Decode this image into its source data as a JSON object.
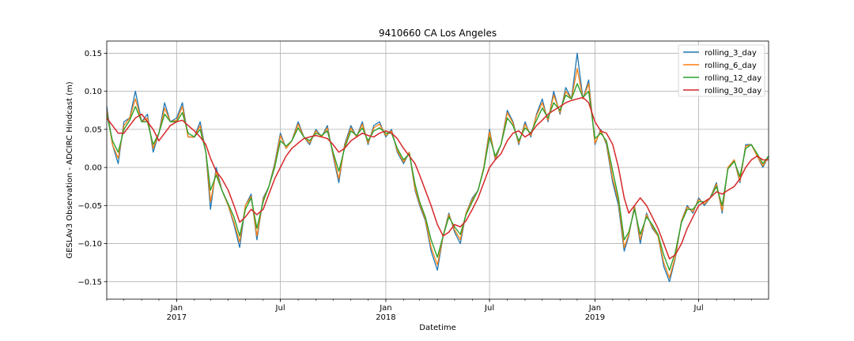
{
  "chart_data": {
    "type": "line",
    "title": "9410660 CA Los Angeles",
    "xlabel": "Datetime",
    "ylabel": "GESLAv3 Observation - ADCIRC Hindcast (m)",
    "xlim": [
      "2016-09-01",
      "2019-10-31"
    ],
    "ylim": [
      -0.173,
      0.166
    ],
    "yticks": [
      -0.15,
      -0.1,
      -0.05,
      0.0,
      0.05,
      0.1,
      0.15
    ],
    "ytick_labels": [
      "−0.15",
      "−0.10",
      "−0.05",
      "0.00",
      "0.05",
      "0.10",
      "0.15"
    ],
    "xticks_major": [
      {
        "date": "2017-01-01",
        "label": "Jan",
        "sublabel": "2017"
      },
      {
        "date": "2017-07-01",
        "label": "Jul",
        "sublabel": ""
      },
      {
        "date": "2018-01-01",
        "label": "Jan",
        "sublabel": "2018"
      },
      {
        "date": "2018-07-01",
        "label": "Jul",
        "sublabel": ""
      },
      {
        "date": "2019-01-01",
        "label": "Jan",
        "sublabel": "2019"
      },
      {
        "date": "2019-07-01",
        "label": "Jul",
        "sublabel": ""
      }
    ],
    "grid": true,
    "legend_position": "top-right",
    "series": [
      {
        "name": "rolling_3_day",
        "color": "#1f77b4"
      },
      {
        "name": "rolling_6_day",
        "color": "#ff7f0e"
      },
      {
        "name": "rolling_12_day",
        "color": "#2ca02c"
      },
      {
        "name": "rolling_30_day",
        "color": "#d62728"
      }
    ],
    "x": [
      "2016-09-01",
      "2016-09-11",
      "2016-09-21",
      "2016-10-01",
      "2016-10-11",
      "2016-10-21",
      "2016-11-01",
      "2016-11-11",
      "2016-11-21",
      "2016-12-01",
      "2016-12-11",
      "2016-12-21",
      "2017-01-01",
      "2017-01-11",
      "2017-01-21",
      "2017-02-01",
      "2017-02-11",
      "2017-02-21",
      "2017-03-01",
      "2017-03-11",
      "2017-03-21",
      "2017-04-01",
      "2017-04-11",
      "2017-04-21",
      "2017-05-01",
      "2017-05-11",
      "2017-05-21",
      "2017-06-01",
      "2017-06-11",
      "2017-06-21",
      "2017-07-01",
      "2017-07-11",
      "2017-07-21",
      "2017-08-01",
      "2017-08-11",
      "2017-08-21",
      "2017-09-01",
      "2017-09-11",
      "2017-09-21",
      "2017-10-01",
      "2017-10-11",
      "2017-10-21",
      "2017-11-01",
      "2017-11-11",
      "2017-11-21",
      "2017-12-01",
      "2017-12-11",
      "2017-12-21",
      "2018-01-01",
      "2018-01-11",
      "2018-01-21",
      "2018-02-01",
      "2018-02-11",
      "2018-02-21",
      "2018-03-01",
      "2018-03-11",
      "2018-03-21",
      "2018-04-01",
      "2018-04-11",
      "2018-04-21",
      "2018-05-01",
      "2018-05-11",
      "2018-05-21",
      "2018-06-01",
      "2018-06-11",
      "2018-06-21",
      "2018-07-01",
      "2018-07-11",
      "2018-07-21",
      "2018-08-01",
      "2018-08-11",
      "2018-08-21",
      "2018-09-01",
      "2018-09-11",
      "2018-09-21",
      "2018-10-01",
      "2018-10-11",
      "2018-10-21",
      "2018-11-01",
      "2018-11-11",
      "2018-11-21",
      "2018-12-01",
      "2018-12-11",
      "2018-12-21",
      "2019-01-01",
      "2019-01-11",
      "2019-01-21",
      "2019-02-01",
      "2019-02-11",
      "2019-02-21",
      "2019-03-01",
      "2019-03-11",
      "2019-03-21",
      "2019-04-01",
      "2019-04-11",
      "2019-04-21",
      "2019-05-01",
      "2019-05-11",
      "2019-05-21",
      "2019-06-01",
      "2019-06-11",
      "2019-06-21",
      "2019-07-01",
      "2019-07-11",
      "2019-07-21",
      "2019-08-01",
      "2019-08-11",
      "2019-08-21",
      "2019-09-01",
      "2019-09-11",
      "2019-09-21",
      "2019-10-01",
      "2019-10-11",
      "2019-10-21",
      "2019-10-31"
    ],
    "values": {
      "rolling_3_day": [
        0.08,
        0.03,
        0.005,
        0.06,
        0.065,
        0.1,
        0.06,
        0.07,
        0.02,
        0.045,
        0.085,
        0.06,
        0.065,
        0.085,
        0.04,
        0.04,
        0.06,
        0.02,
        -0.055,
        0.0,
        -0.03,
        -0.05,
        -0.075,
        -0.105,
        -0.05,
        -0.035,
        -0.095,
        -0.04,
        -0.025,
        0.005,
        0.045,
        0.025,
        0.035,
        0.06,
        0.04,
        0.03,
        0.05,
        0.04,
        0.055,
        0.015,
        -0.02,
        0.03,
        0.055,
        0.04,
        0.06,
        0.03,
        0.055,
        0.06,
        0.04,
        0.05,
        0.02,
        0.005,
        0.02,
        -0.03,
        -0.05,
        -0.07,
        -0.11,
        -0.135,
        -0.09,
        -0.06,
        -0.085,
        -0.1,
        -0.06,
        -0.04,
        -0.03,
        0.0,
        0.05,
        0.01,
        0.03,
        0.075,
        0.06,
        0.03,
        0.06,
        0.04,
        0.07,
        0.09,
        0.06,
        0.1,
        0.07,
        0.105,
        0.09,
        0.15,
        0.09,
        0.115,
        0.03,
        0.05,
        0.03,
        -0.02,
        -0.05,
        -0.11,
        -0.09,
        -0.05,
        -0.1,
        -0.06,
        -0.08,
        -0.09,
        -0.13,
        -0.15,
        -0.12,
        -0.07,
        -0.05,
        -0.06,
        -0.04,
        -0.05,
        -0.04,
        -0.02,
        -0.06,
        0.0,
        0.01,
        -0.02,
        0.03,
        0.03,
        0.015,
        0.0,
        0.015
      ],
      "rolling_6_day": [
        0.075,
        0.03,
        0.012,
        0.055,
        0.065,
        0.09,
        0.06,
        0.065,
        0.025,
        0.045,
        0.078,
        0.06,
        0.062,
        0.08,
        0.04,
        0.04,
        0.055,
        0.02,
        -0.045,
        -0.005,
        -0.03,
        -0.05,
        -0.072,
        -0.098,
        -0.05,
        -0.038,
        -0.09,
        -0.042,
        -0.025,
        0.003,
        0.042,
        0.025,
        0.035,
        0.057,
        0.04,
        0.032,
        0.048,
        0.04,
        0.052,
        0.017,
        -0.015,
        0.028,
        0.052,
        0.04,
        0.057,
        0.032,
        0.052,
        0.057,
        0.042,
        0.048,
        0.022,
        0.007,
        0.02,
        -0.028,
        -0.048,
        -0.068,
        -0.105,
        -0.128,
        -0.09,
        -0.062,
        -0.082,
        -0.095,
        -0.06,
        -0.042,
        -0.03,
        0.0,
        0.047,
        0.012,
        0.03,
        0.072,
        0.058,
        0.032,
        0.057,
        0.042,
        0.068,
        0.085,
        0.062,
        0.095,
        0.072,
        0.1,
        0.09,
        0.13,
        0.09,
        0.11,
        0.032,
        0.048,
        0.032,
        -0.015,
        -0.045,
        -0.105,
        -0.088,
        -0.052,
        -0.095,
        -0.062,
        -0.078,
        -0.09,
        -0.125,
        -0.145,
        -0.118,
        -0.07,
        -0.052,
        -0.058,
        -0.042,
        -0.048,
        -0.04,
        -0.022,
        -0.057,
        0.0,
        0.01,
        -0.018,
        0.028,
        0.03,
        0.015,
        0.002,
        0.015
      ],
      "rolling_12_day": [
        0.07,
        0.035,
        0.02,
        0.05,
        0.062,
        0.08,
        0.06,
        0.06,
        0.03,
        0.045,
        0.07,
        0.06,
        0.06,
        0.072,
        0.045,
        0.04,
        0.05,
        0.02,
        -0.03,
        -0.01,
        -0.03,
        -0.048,
        -0.065,
        -0.09,
        -0.055,
        -0.04,
        -0.08,
        -0.045,
        -0.025,
        0.0,
        0.035,
        0.028,
        0.035,
        0.052,
        0.04,
        0.035,
        0.045,
        0.042,
        0.048,
        0.02,
        -0.005,
        0.025,
        0.048,
        0.042,
        0.052,
        0.035,
        0.048,
        0.052,
        0.045,
        0.045,
        0.025,
        0.01,
        0.018,
        -0.022,
        -0.045,
        -0.065,
        -0.095,
        -0.118,
        -0.09,
        -0.065,
        -0.078,
        -0.088,
        -0.062,
        -0.045,
        -0.03,
        -0.002,
        0.04,
        0.015,
        0.03,
        0.065,
        0.055,
        0.035,
        0.052,
        0.045,
        0.062,
        0.078,
        0.065,
        0.085,
        0.075,
        0.095,
        0.09,
        0.11,
        0.092,
        0.1,
        0.038,
        0.045,
        0.035,
        -0.005,
        -0.04,
        -0.095,
        -0.085,
        -0.055,
        -0.088,
        -0.065,
        -0.075,
        -0.088,
        -0.115,
        -0.135,
        -0.112,
        -0.072,
        -0.055,
        -0.055,
        -0.045,
        -0.045,
        -0.04,
        -0.025,
        -0.05,
        -0.002,
        0.008,
        -0.012,
        0.025,
        0.03,
        0.018,
        0.005,
        0.015
      ],
      "rolling_30_day": [
        0.065,
        0.055,
        0.045,
        0.045,
        0.055,
        0.065,
        0.07,
        0.06,
        0.05,
        0.035,
        0.045,
        0.055,
        0.06,
        0.062,
        0.055,
        0.048,
        0.04,
        0.03,
        0.012,
        -0.005,
        -0.015,
        -0.03,
        -0.05,
        -0.072,
        -0.065,
        -0.055,
        -0.062,
        -0.055,
        -0.035,
        -0.015,
        0.0,
        0.015,
        0.025,
        0.032,
        0.038,
        0.04,
        0.042,
        0.04,
        0.038,
        0.03,
        0.02,
        0.025,
        0.035,
        0.04,
        0.045,
        0.042,
        0.04,
        0.045,
        0.048,
        0.045,
        0.038,
        0.025,
        0.015,
        0.005,
        -0.01,
        -0.03,
        -0.05,
        -0.075,
        -0.09,
        -0.085,
        -0.075,
        -0.078,
        -0.07,
        -0.055,
        -0.04,
        -0.02,
        0.0,
        0.01,
        0.018,
        0.035,
        0.045,
        0.048,
        0.04,
        0.045,
        0.055,
        0.062,
        0.07,
        0.075,
        0.08,
        0.085,
        0.088,
        0.09,
        0.092,
        0.085,
        0.06,
        0.048,
        0.045,
        0.03,
        0.0,
        -0.04,
        -0.06,
        -0.05,
        -0.04,
        -0.05,
        -0.065,
        -0.08,
        -0.1,
        -0.12,
        -0.115,
        -0.1,
        -0.08,
        -0.065,
        -0.05,
        -0.045,
        -0.04,
        -0.032,
        -0.035,
        -0.03,
        -0.025,
        -0.015,
        0.0,
        0.01,
        0.015,
        0.01,
        0.01
      ]
    }
  }
}
